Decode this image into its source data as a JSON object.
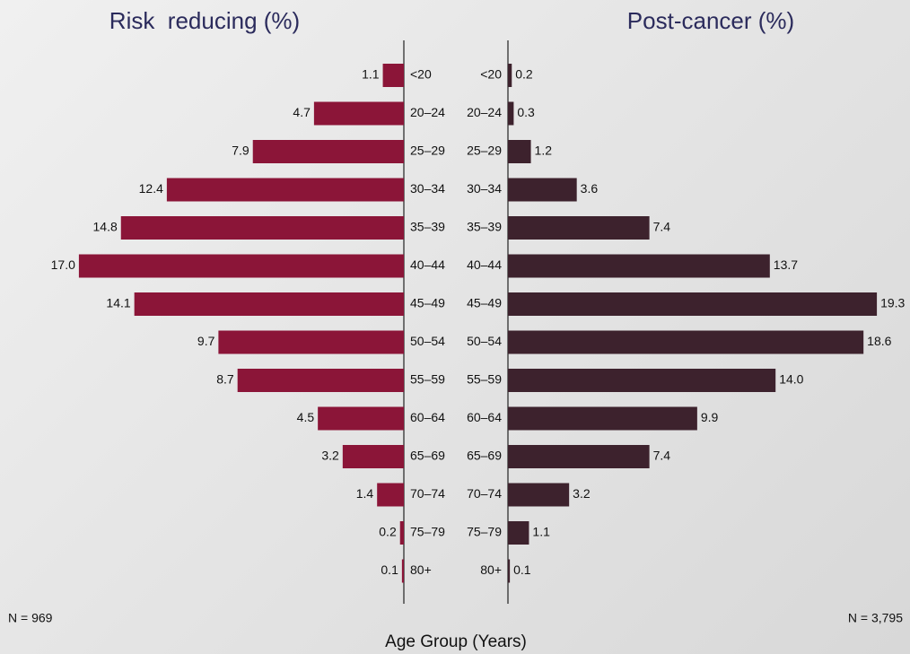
{
  "chart_data": {
    "type": "butterfly",
    "x_label": "Age Group (Years)",
    "xlim": [
      0,
      20
    ],
    "categories": [
      "<20",
      "20–24",
      "25–29",
      "30–34",
      "35–39",
      "40–44",
      "45–49",
      "50–54",
      "55–59",
      "60–64",
      "65–69",
      "70–74",
      "75–79",
      "80+"
    ],
    "series": [
      {
        "name": "Risk  reducing (%)",
        "color": "#8b1538",
        "note": "N = 969",
        "values": [
          1.1,
          4.7,
          7.9,
          12.4,
          14.8,
          17.0,
          14.1,
          9.7,
          8.7,
          4.5,
          3.2,
          1.4,
          0.2,
          0.1
        ],
        "value_labels": [
          "1.1",
          "4.7",
          "7.9",
          "12.4",
          "14.8",
          "17.0",
          "14.1",
          "9.7",
          "8.7",
          "4.5",
          "3.2",
          "1.4",
          "0.2",
          "0.1"
        ]
      },
      {
        "name": "Post-cancer (%)",
        "color": "#3d222d",
        "note": "N = 3,795",
        "values": [
          0.2,
          0.3,
          1.2,
          3.6,
          7.4,
          13.7,
          19.3,
          18.6,
          14.0,
          9.9,
          7.4,
          3.2,
          1.1,
          0.1
        ],
        "value_labels": [
          "0.2",
          "0.3",
          "1.2",
          "3.6",
          "7.4",
          "13.7",
          "19.3",
          "18.6",
          "14.0",
          "9.9",
          "7.4",
          "3.2",
          "1.1",
          "0.1"
        ]
      }
    ]
  }
}
